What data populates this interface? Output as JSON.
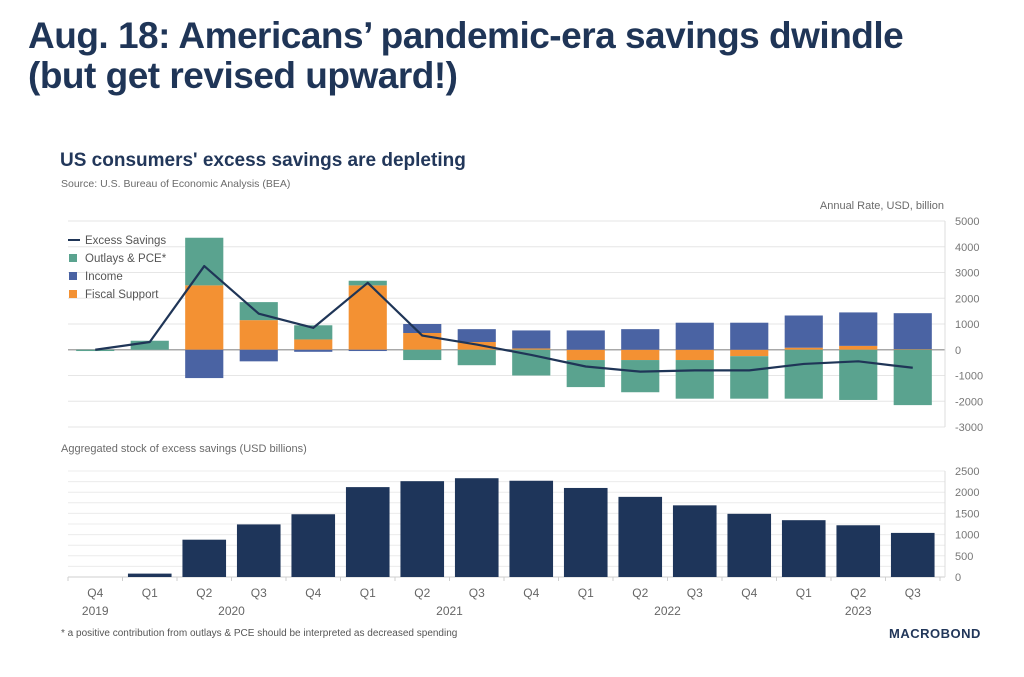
{
  "headline": "Aug. 18: Americans’ pandemic-era savings dwindle (but get revised upward!)",
  "footnote": "* a positive contribution from outlays & PCE should be interpreted as decreased spending",
  "logo": "MACROBOND",
  "colors": {
    "outlays": "#5aa38f",
    "income": "#4a63a3",
    "fiscal": "#f39133",
    "line": "#1f3557",
    "stock_bar": "#1e355a"
  },
  "chart_data": [
    {
      "type": "bar",
      "stacked": true,
      "title": "US consumers' excess savings are depleting",
      "subtitle": "Source: U.S. Bureau of Economic Analysis (BEA)",
      "ylabel": "Annual Rate, USD, billion",
      "ylim": [
        -3000,
        5000
      ],
      "yticks": [
        5000,
        4000,
        3000,
        2000,
        1000,
        0,
        -1000,
        -2000,
        -3000
      ],
      "grid": true,
      "legend_position": "top-left",
      "categories": [
        "Q4 2019",
        "Q1 2020",
        "Q2 2020",
        "Q3 2020",
        "Q4 2020",
        "Q1 2021",
        "Q2 2021",
        "Q3 2021",
        "Q4 2021",
        "Q1 2022",
        "Q2 2022",
        "Q3 2022",
        "Q4 2022",
        "Q1 2023",
        "Q2 2023",
        "Q3 2023"
      ],
      "series": [
        {
          "name": "Excess Savings",
          "kind": "line",
          "values": [
            0,
            300,
            3250,
            1400,
            850,
            2600,
            550,
            200,
            -200,
            -650,
            -850,
            -800,
            -800,
            -550,
            -450,
            -700
          ]
        },
        {
          "name": "Outlays & PCE*",
          "kind": "bar",
          "values": [
            -50,
            350,
            1850,
            700,
            550,
            180,
            -400,
            -600,
            -1000,
            -1050,
            -1250,
            -1500,
            -1650,
            -1900,
            -1950,
            -2150
          ]
        },
        {
          "name": "Income",
          "kind": "bar",
          "values": [
            0,
            0,
            -1100,
            -450,
            -80,
            -50,
            350,
            500,
            700,
            750,
            800,
            1050,
            1050,
            1250,
            1300,
            1400
          ]
        },
        {
          "name": "Fiscal Support",
          "kind": "bar",
          "values": [
            0,
            0,
            2500,
            1150,
            400,
            2500,
            650,
            300,
            50,
            -400,
            -400,
            -400,
            -250,
            80,
            150,
            20
          ]
        }
      ]
    },
    {
      "type": "bar",
      "title": "Aggregated stock of excess savings (USD billions)",
      "ylim": [
        0,
        2500
      ],
      "yticks": [
        2500,
        2000,
        1500,
        1000,
        500,
        0
      ],
      "grid": true,
      "categories": [
        "Q4 2019",
        "Q1 2020",
        "Q2 2020",
        "Q3 2020",
        "Q4 2020",
        "Q1 2021",
        "Q2 2021",
        "Q3 2021",
        "Q4 2021",
        "Q1 2022",
        "Q2 2022",
        "Q3 2022",
        "Q4 2022",
        "Q1 2023",
        "Q2 2023",
        "Q3 2023"
      ],
      "values": [
        0,
        80,
        880,
        1240,
        1480,
        2120,
        2260,
        2330,
        2270,
        2100,
        1890,
        1690,
        1490,
        1340,
        1220,
        1040
      ]
    }
  ],
  "x_axis": {
    "quarters": [
      "Q4",
      "Q1",
      "Q2",
      "Q3",
      "Q4",
      "Q1",
      "Q2",
      "Q3",
      "Q4",
      "Q1",
      "Q2",
      "Q3",
      "Q4",
      "Q1",
      "Q2",
      "Q3"
    ],
    "years": [
      {
        "label": "2019",
        "center_index": 0
      },
      {
        "label": "2020",
        "center_index": 2.5
      },
      {
        "label": "2021",
        "center_index": 6.5
      },
      {
        "label": "2022",
        "center_index": 10.5
      },
      {
        "label": "2023",
        "center_index": 14
      }
    ]
  }
}
